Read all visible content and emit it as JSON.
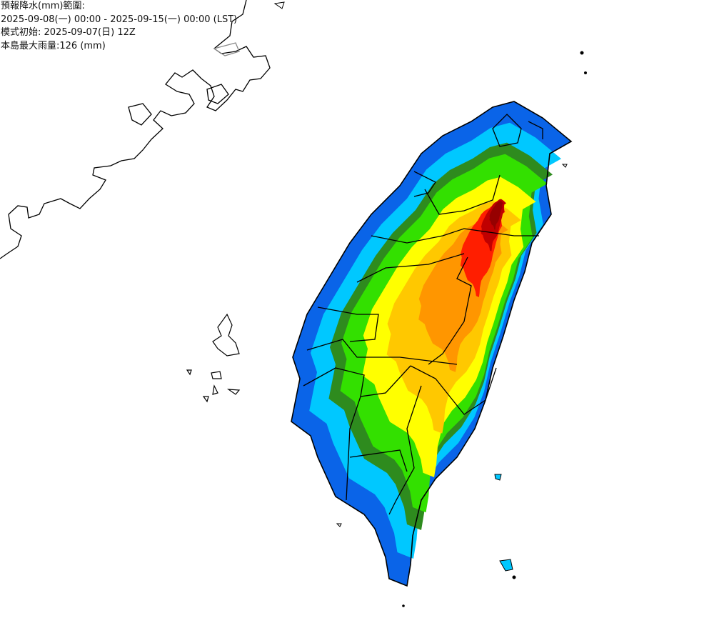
{
  "header": {
    "line1": "預報降水(mm)範圍:",
    "line2": "2025-09-08(一) 00:00 - 2025-09-15(一) 00:00 (LST)",
    "line3": "模式初始: 2025-09-07(日) 12Z",
    "line4": "本島最大雨量:126 (mm)"
  },
  "map": {
    "region": "Taiwan",
    "max_rainfall_mm": 126,
    "band_colors": [
      "#0a64e8",
      "#00c8ff",
      "#2e8b1e",
      "#33e000",
      "#ffff00",
      "#ffc800",
      "#ff9600",
      "#ff1e00",
      "#c00000",
      "#960000"
    ],
    "coast_color": "#000000"
  }
}
